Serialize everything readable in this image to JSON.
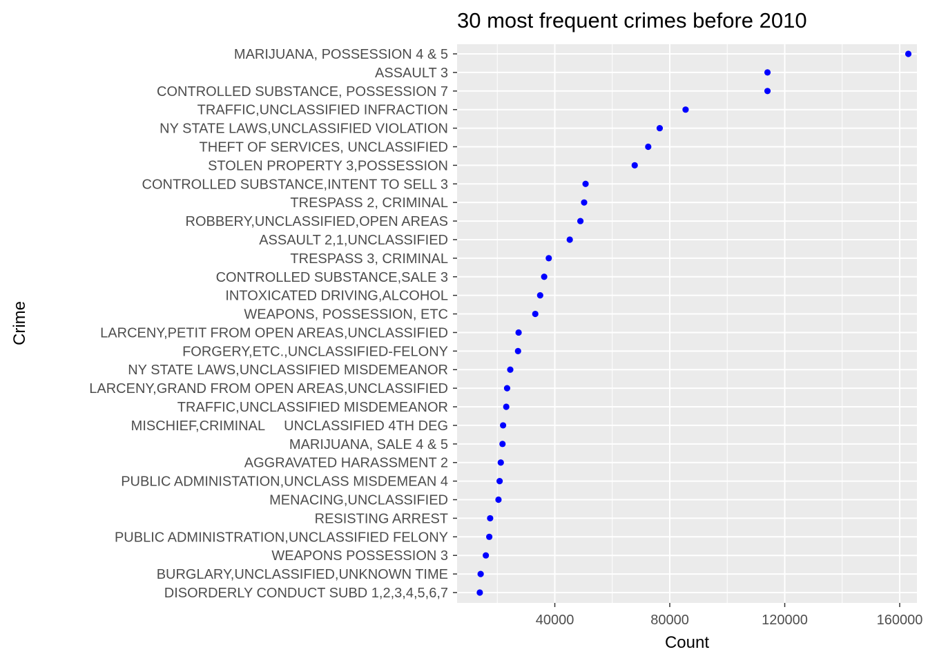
{
  "chart_data": {
    "type": "scatter",
    "title": "30 most frequent crimes before 2010",
    "xlabel": "Count",
    "ylabel": "Crime",
    "xlim": [
      6000,
      166000
    ],
    "x_ticks": [
      40000,
      80000,
      120000,
      160000
    ],
    "x_tick_labels": [
      "40000",
      "80000",
      "120000",
      "160000"
    ],
    "grid": true,
    "legend": "none",
    "point_color": "#0000ff",
    "panel_background": "#ebebeb",
    "categories": [
      "MARIJUANA, POSSESSION 4 & 5",
      "ASSAULT 3",
      "CONTROLLED SUBSTANCE, POSSESSION 7",
      "TRAFFIC,UNCLASSIFIED INFRACTION",
      "NY STATE LAWS,UNCLASSIFIED VIOLATION",
      "THEFT OF SERVICES, UNCLASSIFIED",
      "STOLEN PROPERTY 3,POSSESSION",
      "CONTROLLED SUBSTANCE,INTENT TO SELL 3",
      "TRESPASS 2, CRIMINAL",
      "ROBBERY,UNCLASSIFIED,OPEN AREAS",
      "ASSAULT 2,1,UNCLASSIFIED",
      "TRESPASS 3, CRIMINAL",
      "CONTROLLED SUBSTANCE,SALE 3",
      "INTOXICATED DRIVING,ALCOHOL",
      "WEAPONS, POSSESSION, ETC",
      "LARCENY,PETIT FROM OPEN AREAS,UNCLASSIFIED",
      "FORGERY,ETC.,UNCLASSIFIED-FELONY",
      "NY STATE LAWS,UNCLASSIFIED MISDEMEANOR",
      "LARCENY,GRAND FROM OPEN AREAS,UNCLASSIFIED",
      "TRAFFIC,UNCLASSIFIED MISDEMEANOR",
      "MISCHIEF,CRIMINAL     UNCLASSIFIED 4TH DEG",
      "MARIJUANA, SALE 4 & 5",
      "AGGRAVATED HARASSMENT 2",
      "PUBLIC ADMINISTATION,UNCLASS MISDEMEAN 4",
      "MENACING,UNCLASSIFIED",
      "RESISTING ARREST",
      "PUBLIC ADMINISTRATION,UNCLASSIFIED FELONY",
      "WEAPONS POSSESSION 3",
      "BURGLARY,UNCLASSIFIED,UNKNOWN TIME",
      "DISORDERLY CONDUCT SUBD 1,2,3,4,5,6,7"
    ],
    "values": [
      163000,
      114000,
      114000,
      85500,
      76500,
      72500,
      67800,
      50700,
      50200,
      48900,
      45200,
      37900,
      36300,
      34900,
      33200,
      27400,
      27200,
      24500,
      23400,
      23100,
      22000,
      21800,
      21200,
      20800,
      20400,
      17500,
      17200,
      16000,
      14200,
      13900
    ]
  }
}
